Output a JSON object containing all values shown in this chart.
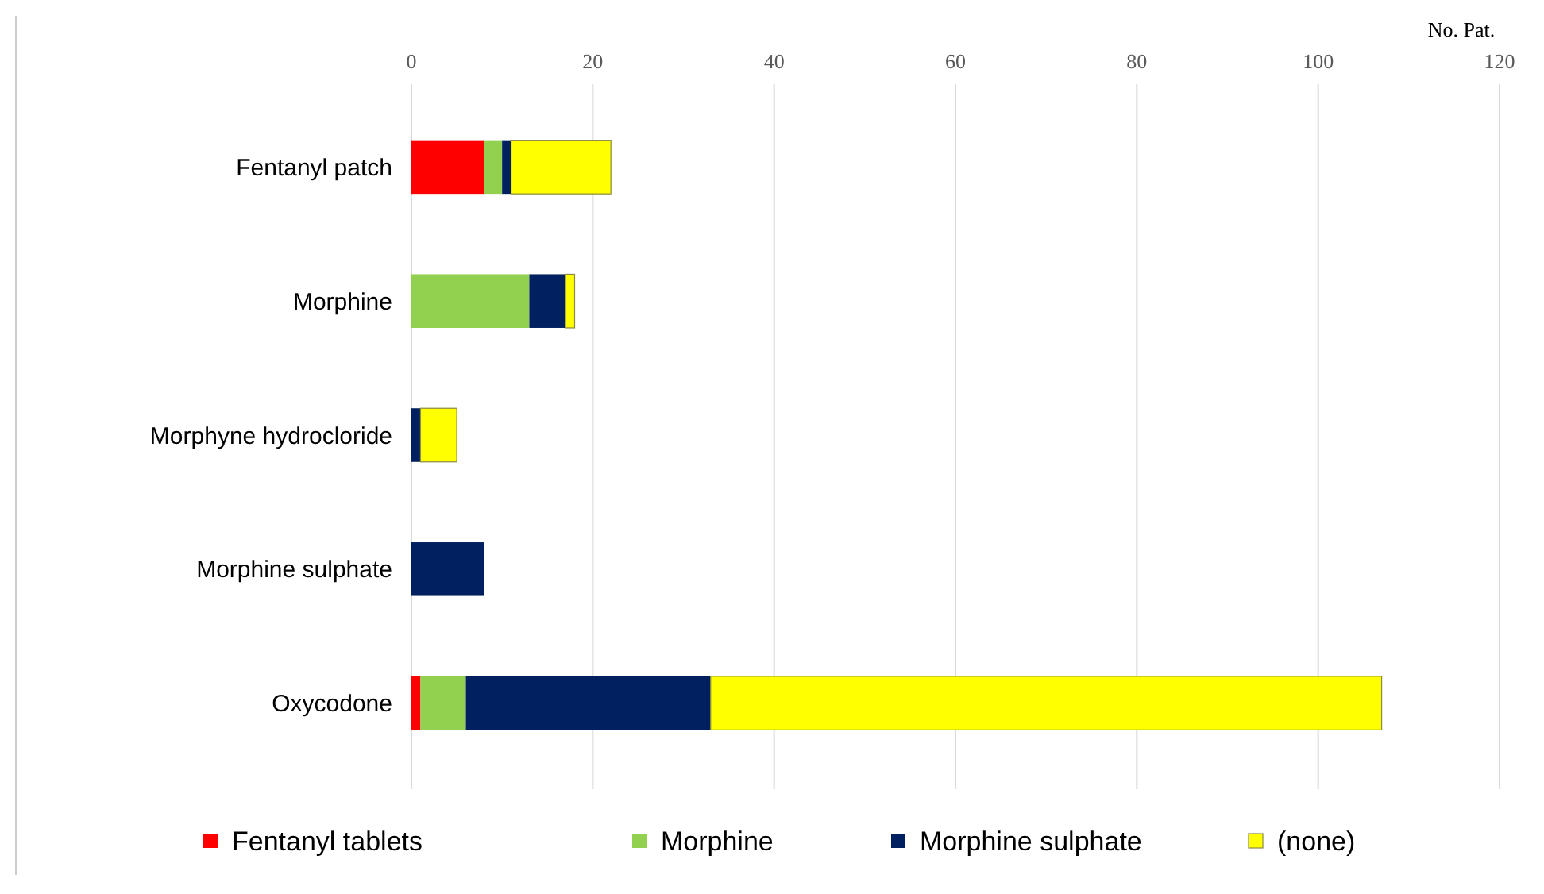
{
  "chart_data": {
    "type": "bar",
    "orientation": "horizontal",
    "stacked": true,
    "xlabel": "No. Pat.",
    "categories": [
      "Fentanyl patch",
      "Morphine",
      "Morphyne hydrocloride",
      "Morphine sulphate",
      "Oxycodone"
    ],
    "series": [
      {
        "name": "Fentanyl tablets",
        "color": "#ff0000",
        "values": [
          8,
          0,
          0,
          0,
          1
        ]
      },
      {
        "name": "Morphine",
        "color": "#92d050",
        "values": [
          2,
          13,
          0,
          0,
          5
        ]
      },
      {
        "name": "Morphine sulphate",
        "color": "#002060",
        "values": [
          1,
          4,
          1,
          8,
          27
        ]
      },
      {
        "name": "(none)",
        "color": "#ffff00",
        "values": [
          11,
          1,
          4,
          0,
          74
        ]
      }
    ],
    "xlim": [
      0,
      120
    ],
    "xticks": [
      0,
      20,
      40,
      60,
      80,
      100,
      120
    ],
    "grid": "x",
    "legend": "bottom"
  }
}
